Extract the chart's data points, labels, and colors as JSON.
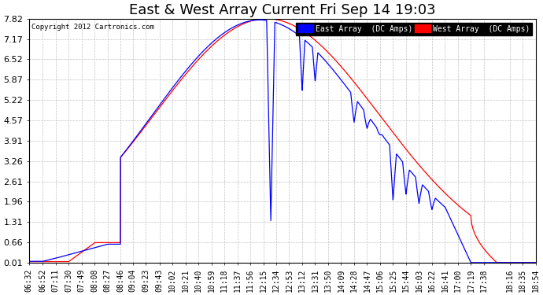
{
  "title": "East & West Array Current Fri Sep 14 19:03",
  "copyright": "Copyright 2012 Cartronics.com",
  "legend_east": "East Array  (DC Amps)",
  "legend_west": "West Array  (DC Amps)",
  "east_color": "#0000ff",
  "west_color": "#ff0000",
  "background_color": "#ffffff",
  "grid_color": "#bbbbbb",
  "ylim": [
    0.01,
    7.82
  ],
  "yticks": [
    0.01,
    0.66,
    1.31,
    1.96,
    2.61,
    3.26,
    3.91,
    4.57,
    5.22,
    5.87,
    6.52,
    7.17,
    7.82
  ],
  "xlabel_fontsize": 7,
  "ylabel_fontsize": 8,
  "title_fontsize": 13,
  "xtick_labels": [
    "06:32",
    "06:52",
    "07:11",
    "07:30",
    "07:49",
    "08:08",
    "08:27",
    "08:46",
    "09:04",
    "09:23",
    "09:43",
    "10:02",
    "10:21",
    "10:40",
    "10:59",
    "11:18",
    "11:37",
    "11:56",
    "12:15",
    "12:34",
    "12:53",
    "13:12",
    "13:31",
    "13:50",
    "14:09",
    "14:28",
    "14:47",
    "15:06",
    "15:25",
    "15:44",
    "16:03",
    "16:22",
    "16:41",
    "17:00",
    "17:19",
    "17:38",
    "18:16",
    "18:35",
    "18:54"
  ]
}
